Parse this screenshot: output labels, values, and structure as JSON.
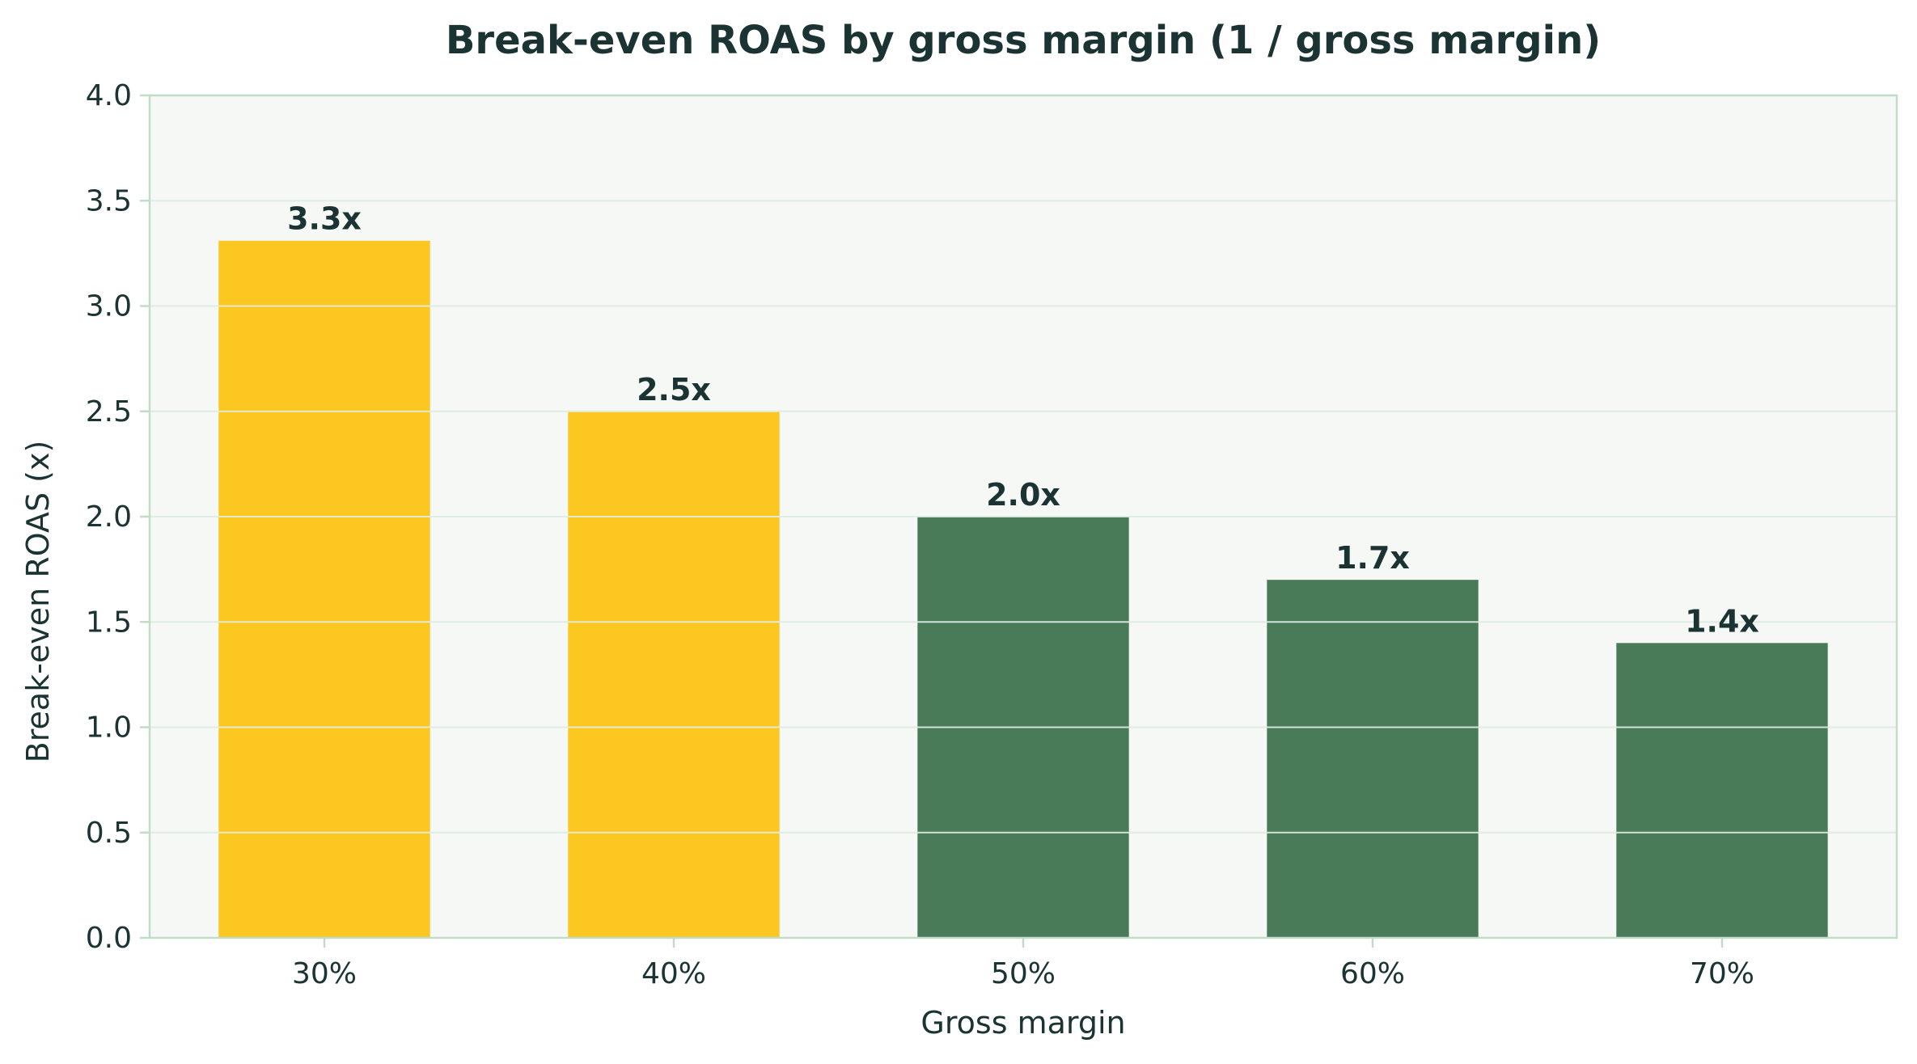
{
  "chart_data": {
    "type": "bar",
    "title": "Break-even ROAS by gross margin (1 / gross margin)",
    "xlabel": "Gross margin",
    "ylabel": "Break-even ROAS (x)",
    "categories": [
      "30%",
      "40%",
      "50%",
      "60%",
      "70%"
    ],
    "values": [
      3.31,
      2.5,
      2.0,
      1.7,
      1.4
    ],
    "value_labels": [
      "3.3x",
      "2.5x",
      "2.0x",
      "1.7x",
      "1.4x"
    ],
    "bar_colors": [
      "#fcc720",
      "#fcc720",
      "#4a7b59",
      "#4a7b59",
      "#4a7b59"
    ],
    "ylim": [
      0,
      4.0
    ],
    "yticks": [
      0.0,
      0.5,
      1.0,
      1.5,
      2.0,
      2.5,
      3.0,
      3.5,
      4.0
    ],
    "ytick_labels": [
      "0.0",
      "0.5",
      "1.0",
      "1.5",
      "2.0",
      "2.5",
      "3.0",
      "3.5",
      "4.0"
    ],
    "grid": "horizontal",
    "colors": {
      "plot_background": "#f5f8f5",
      "grid": "#d9ebdf",
      "axis": "#c2dcc8",
      "text": "#1b3433"
    }
  }
}
